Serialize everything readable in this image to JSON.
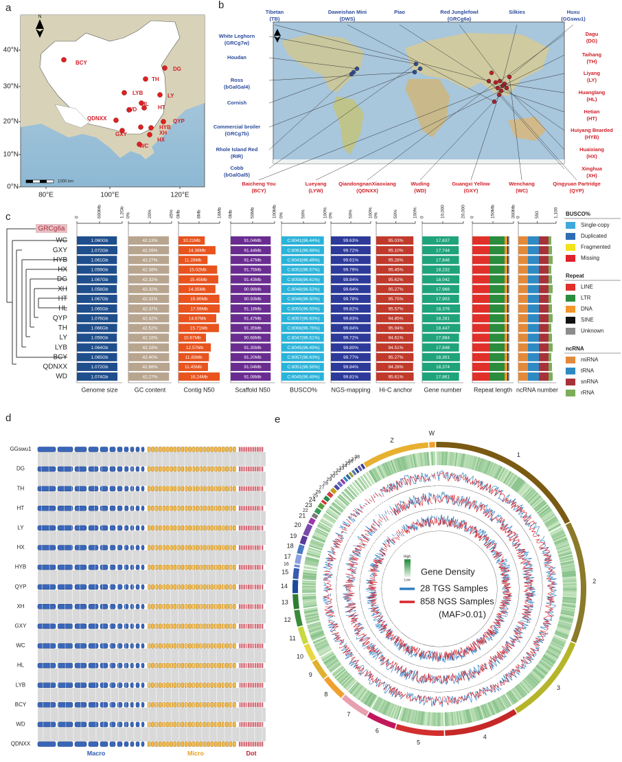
{
  "panel_labels": [
    "a",
    "b",
    "c",
    "d",
    "e"
  ],
  "panel_a": {
    "north": "N",
    "scale": "1000 km",
    "lat_ticks": [
      "0°N",
      "10°N",
      "20°N",
      "30°N",
      "40°N"
    ],
    "lon_ticks": [
      "80°E",
      "100°E",
      "120°E"
    ],
    "sites": [
      "BCY",
      "DG",
      "TH",
      "LY",
      "LYB",
      "HL",
      "HT",
      "WD",
      "QDNXX",
      "GXY",
      "HYB",
      "QYP",
      "XH",
      "HX",
      "WC"
    ]
  },
  "panel_b": {
    "north": "N",
    "top": [
      {
        "name": "Tibetan",
        "code": "(TB)"
      },
      {
        "name": "Daweishan Mini",
        "code": "(DWS)"
      },
      {
        "name": "Piao"
      },
      {
        "name": "Red Junglefowl",
        "code": "(GRCg6a)"
      },
      {
        "name": "Silkies"
      },
      {
        "name": "Huxu",
        "code": "(GGswu1)"
      }
    ],
    "left": [
      {
        "name": "White Leghorn",
        "code": "(GRCg7w)"
      },
      {
        "name": "Houdan"
      },
      {
        "name": "Ross",
        "code": "(bGalGal4)"
      },
      {
        "name": "Cornish"
      },
      {
        "name": "Commercial broiler",
        "code": "(GRCg7b)"
      },
      {
        "name": "Rhole Island Red",
        "code": "(RIR)"
      },
      {
        "name": "Cobb",
        "code": "(bGalGal5)"
      }
    ],
    "right": [
      {
        "name": "Dagu",
        "code": "(DG)"
      },
      {
        "name": "Taihang",
        "code": "(TH)"
      },
      {
        "name": "Liyang",
        "code": "(LY)"
      },
      {
        "name": "Huanglang",
        "code": "(HL)"
      },
      {
        "name": "Hetian",
        "code": "(HT)"
      },
      {
        "name": "Huiyang Bearded",
        "code": "(HYB)"
      },
      {
        "name": "Huaixiang",
        "code": "(HX)"
      },
      {
        "name": "Xinghua",
        "code": "(XH)"
      }
    ],
    "bottom": [
      {
        "name": "Baicheng You",
        "code": "(BCY)"
      },
      {
        "name": "Lueyang",
        "code": "(LYW)"
      },
      {
        "name": "QiandongnanXiaoxiang",
        "code": "(QDNXX)"
      },
      {
        "name": "Wuding",
        "code": "(WD)"
      },
      {
        "name": "Guangxi Yellow",
        "code": "(GXY)"
      },
      {
        "name": "Wenchang",
        "code": "(WC)"
      },
      {
        "name": "Qingyuan Partridge",
        "code": "(QYP)"
      }
    ]
  },
  "panel_c": {
    "reference": "GRCg6a",
    "columns": [
      {
        "title": "Genome size",
        "ticks": [
          "0",
          "600Mb",
          "1.2Gb"
        ]
      },
      {
        "title": "GC content",
        "ticks": [
          "0%",
          "20%",
          "45%"
        ]
      },
      {
        "title": "Contig N50",
        "ticks": [
          "0Mb",
          "8Mb",
          "16Mb"
        ]
      },
      {
        "title": "Scaffold N50",
        "ticks": [
          "0Mb",
          "50Mb",
          "100Mb"
        ]
      },
      {
        "title": "BUSCO%",
        "ticks": [
          "0%",
          "50%",
          "100%"
        ]
      },
      {
        "title": "NGS-mapping",
        "ticks": [
          "0%",
          "50%",
          "100%"
        ]
      },
      {
        "title": "Hi-C anchor",
        "ticks": [
          "0%",
          "50%",
          "100%"
        ]
      },
      {
        "title": "Gene number",
        "ticks": [
          "0",
          "10,000",
          "20,000"
        ]
      },
      {
        "title": "Repeat length",
        "ticks": [
          "0",
          "150Mb",
          "300Mb"
        ]
      },
      {
        "title": "ncRNA number",
        "ticks": [
          "0",
          "550",
          "1,100"
        ]
      }
    ],
    "rows": [
      {
        "name": "WC",
        "cells": [
          "1.060Gb",
          "42.13%",
          "10.21Mb",
          "91.04Mb",
          "C:8041(96.44%)",
          "99.63%",
          "95.03%",
          "17,637"
        ]
      },
      {
        "name": "GXY",
        "cells": [
          "1.072Gb",
          "42.26%",
          "14.38Mb",
          "91.44Mb",
          "C:8061(96.68%)",
          "99.72%",
          "95.10%",
          "17,744"
        ]
      },
      {
        "name": "HYB",
        "cells": [
          "1.061Gb",
          "42.27%",
          "11.28Mb",
          "91.47Mb",
          "C:8043(96.46%)",
          "99.61%",
          "95.28%",
          "17,846"
        ]
      },
      {
        "name": "HX",
        "cells": [
          "1.059Gb",
          "42.38%",
          "15.02Mb",
          "91.75Mb",
          "C:8052(96.57%)",
          "99.79%",
          "95.45%",
          "18,232"
        ]
      },
      {
        "name": "DG",
        "cells": [
          "1.067Gb",
          "42.32%",
          "15.45Mb",
          "91.43Mb",
          "C:8058(96.61%)",
          "99.84%",
          "95.62%",
          "18,042"
        ]
      },
      {
        "name": "XH",
        "cells": [
          "1.058Gb",
          "42.32%",
          "14.35Mb",
          "90.98Mb",
          "C:8048(96.52%)",
          "99.64%",
          "95.27%",
          "17,968"
        ]
      },
      {
        "name": "HT",
        "cells": [
          "1.067Gb",
          "42.31%",
          "15.90Mb",
          "90.93Mb",
          "C:8046(96.50%)",
          "99.78%",
          "95.75%",
          "17,903"
        ]
      },
      {
        "name": "HL",
        "cells": [
          "1.065Gb",
          "42.37%",
          "17.59Mb",
          "91.16Mb",
          "C:8050(96.55%)",
          "99.82%",
          "95.57%",
          "18,376"
        ]
      },
      {
        "name": "QYP",
        "cells": [
          "1.076Gb",
          "42.42%",
          "14.67Mb",
          "91.47Mb",
          "C:8057(96.63%)",
          "99.83%",
          "94.85%",
          "18,281"
        ]
      },
      {
        "name": "TH",
        "cells": [
          "1.066Gb",
          "42.52%",
          "15.71Mb",
          "91.35Mb",
          "C:8068(96.76%)",
          "99.84%",
          "95.94%",
          "18,447"
        ]
      },
      {
        "name": "LY",
        "cells": [
          "1.059Gb",
          "42.16%",
          "10.67Mb",
          "90.68Mb",
          "C:8047(96.51%)",
          "99.72%",
          "94.61%",
          "17,884"
        ]
      },
      {
        "name": "LYB",
        "cells": [
          "1.064Gb",
          "42.18%",
          "12.57Mb",
          "91.35Mb",
          "C:8045(96.49%)",
          "99.80%",
          "94.51%",
          "17,848"
        ]
      },
      {
        "name": "BCY",
        "cells": [
          "1.065Gb",
          "42.40%",
          "11.83Mb",
          "91.20Mb",
          "C:8057(96.63%)",
          "99.77%",
          "95.27%",
          "18,301"
        ]
      },
      {
        "name": "QDNXX",
        "cells": [
          "1.072Gb",
          "42.86%",
          "11.45Mb",
          "91.04Mb",
          "C:8051(96.56%)",
          "99.84%",
          "94.28%",
          "18,374"
        ]
      },
      {
        "name": "WD",
        "cells": [
          "1.074Gb",
          "42.27%",
          "16.24Mb",
          "91.08Mb",
          "C:8045(96.49%)",
          "99.81%",
          "95.61%",
          "17,861"
        ]
      }
    ],
    "legends": [
      {
        "title": "BUSCO%",
        "items": [
          {
            "label": "Single-copy",
            "color": "#3fa9dc"
          },
          {
            "label": "Duplicated",
            "color": "#2e6db4"
          },
          {
            "label": "Fragmented",
            "color": "#f4e21b"
          },
          {
            "label": "Missing",
            "color": "#e0202a"
          }
        ]
      },
      {
        "title": "Repeat",
        "items": [
          {
            "label": "LINE",
            "color": "#e0302a"
          },
          {
            "label": "LTR",
            "color": "#2a8c3c"
          },
          {
            "label": "DNA",
            "color": "#f2962a"
          },
          {
            "label": "SINE",
            "color": "#111111"
          },
          {
            "label": "Unknown",
            "color": "#8c8c8c"
          }
        ]
      },
      {
        "title": "ncRNA",
        "items": [
          {
            "label": "miRNA",
            "color": "#e38a3a"
          },
          {
            "label": "tRNA",
            "color": "#2f8ac4"
          },
          {
            "label": "snRNA",
            "color": "#a8323a"
          },
          {
            "label": "rRNA",
            "color": "#7cad5a"
          }
        ]
      }
    ]
  },
  "panel_d": {
    "genomes": [
      "GGswu1",
      "DG",
      "TH",
      "HT",
      "LY",
      "HX",
      "HYB",
      "QYP",
      "XH",
      "GXY",
      "WC",
      "HL",
      "LYB",
      "BCY",
      "WD",
      "QDNXX"
    ],
    "groups": [
      "Macro",
      "Micro",
      "Dot"
    ]
  },
  "panel_e": {
    "chromosomes": [
      "W",
      "1",
      "2",
      "3",
      "4",
      "5",
      "6",
      "7",
      "8",
      "9",
      "10",
      "11",
      "12",
      "13",
      "14",
      "15",
      "16",
      "17",
      "18",
      "19",
      "20",
      "21",
      "22",
      "23",
      "24",
      "25",
      "26",
      "27",
      "28",
      "29",
      "30",
      "31",
      "32",
      "33",
      "34",
      "35",
      "36",
      "37",
      "38",
      "Z"
    ],
    "legend": {
      "high": "High",
      "low": "Low",
      "title": "Gene Density",
      "series": [
        {
          "name": "28 TGS Samples",
          "color": "#2f7fc1"
        },
        {
          "name": "858 NGS Samples",
          "color": "#d7262e"
        }
      ],
      "note": "(MAF>0.01)"
    }
  }
}
